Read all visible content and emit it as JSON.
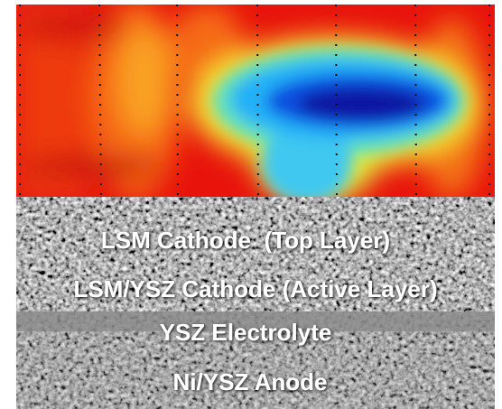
{
  "labels": [
    "LSM Cathode  (Top Layer)",
    "LSM/YSZ Cathode (Active Layer)",
    "YSZ Electrolyte",
    "Ni/YSZ Anode"
  ]
}
